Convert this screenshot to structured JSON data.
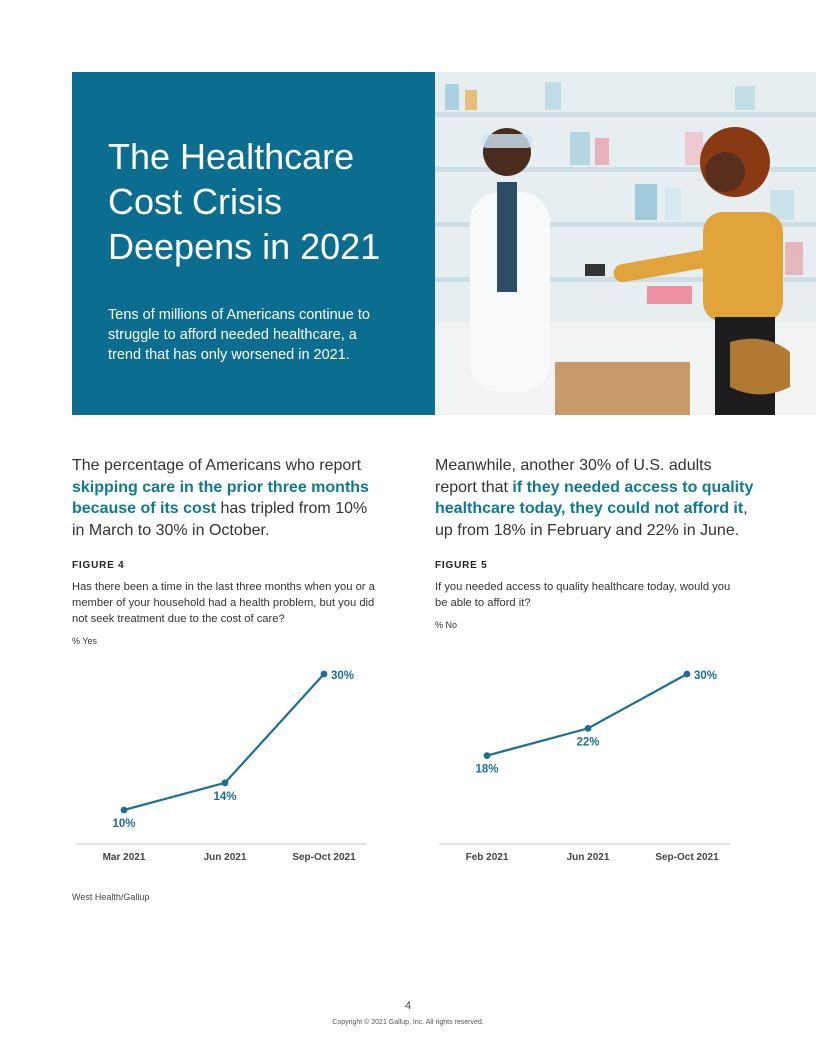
{
  "hero": {
    "title": "The Healthcare Cost Crisis Deepens in 2021",
    "subtitle": "Tens of millions of Americans continue to struggle to afford needed healthcare, a trend that has only worsened in 2021."
  },
  "intro_left": {
    "pre": "The percentage of Americans who report ",
    "highlight": "skipping care in the prior three months because of its cost",
    "post": " has tripled from 10% in March to 30% in October."
  },
  "intro_right": {
    "pre": "Meanwhile, another 30% of U.S. adults report that ",
    "highlight": "if they needed access to quality healthcare today, they could not afford it",
    "post": ", up from 18% in February and 22% in June."
  },
  "figure4": {
    "label": "FIGURE 4",
    "question": "Has there been a time in the last three months when you or a member of your household had a health problem, but you did not seek treatment due to the cost of care?",
    "unit": "% Yes"
  },
  "figure5": {
    "label": "FIGURE 5",
    "question": "If you needed access to quality healthcare today, would you be able to afford it?",
    "unit": "% No"
  },
  "chart_data": [
    {
      "type": "line",
      "title": "FIGURE 4",
      "categories": [
        "Mar 2021",
        "Jun 2021",
        "Sep-Oct 2021"
      ],
      "values": [
        10,
        14,
        30
      ],
      "labels": [
        "10%",
        "14%",
        "30%"
      ],
      "ylabel": "% Yes",
      "ylim": [
        10,
        30
      ],
      "color": "#1f6f91"
    },
    {
      "type": "line",
      "title": "FIGURE 5",
      "categories": [
        "Feb 2021",
        "Jun 2021",
        "Sep-Oct 2021"
      ],
      "values": [
        18,
        22,
        30
      ],
      "labels": [
        "18%",
        "22%",
        "30%"
      ],
      "ylabel": "% No",
      "ylim": [
        10,
        30
      ],
      "color": "#1f6f91"
    }
  ],
  "footer": {
    "source": "West Health/Gallup",
    "page_number": "4",
    "copyright": "Copyright © 2021 Gallup, Inc. All rights reserved."
  },
  "colors": {
    "hero_blue": "#0b6d8f",
    "highlight_teal": "#0f7a91",
    "line": "#1f6f91"
  }
}
